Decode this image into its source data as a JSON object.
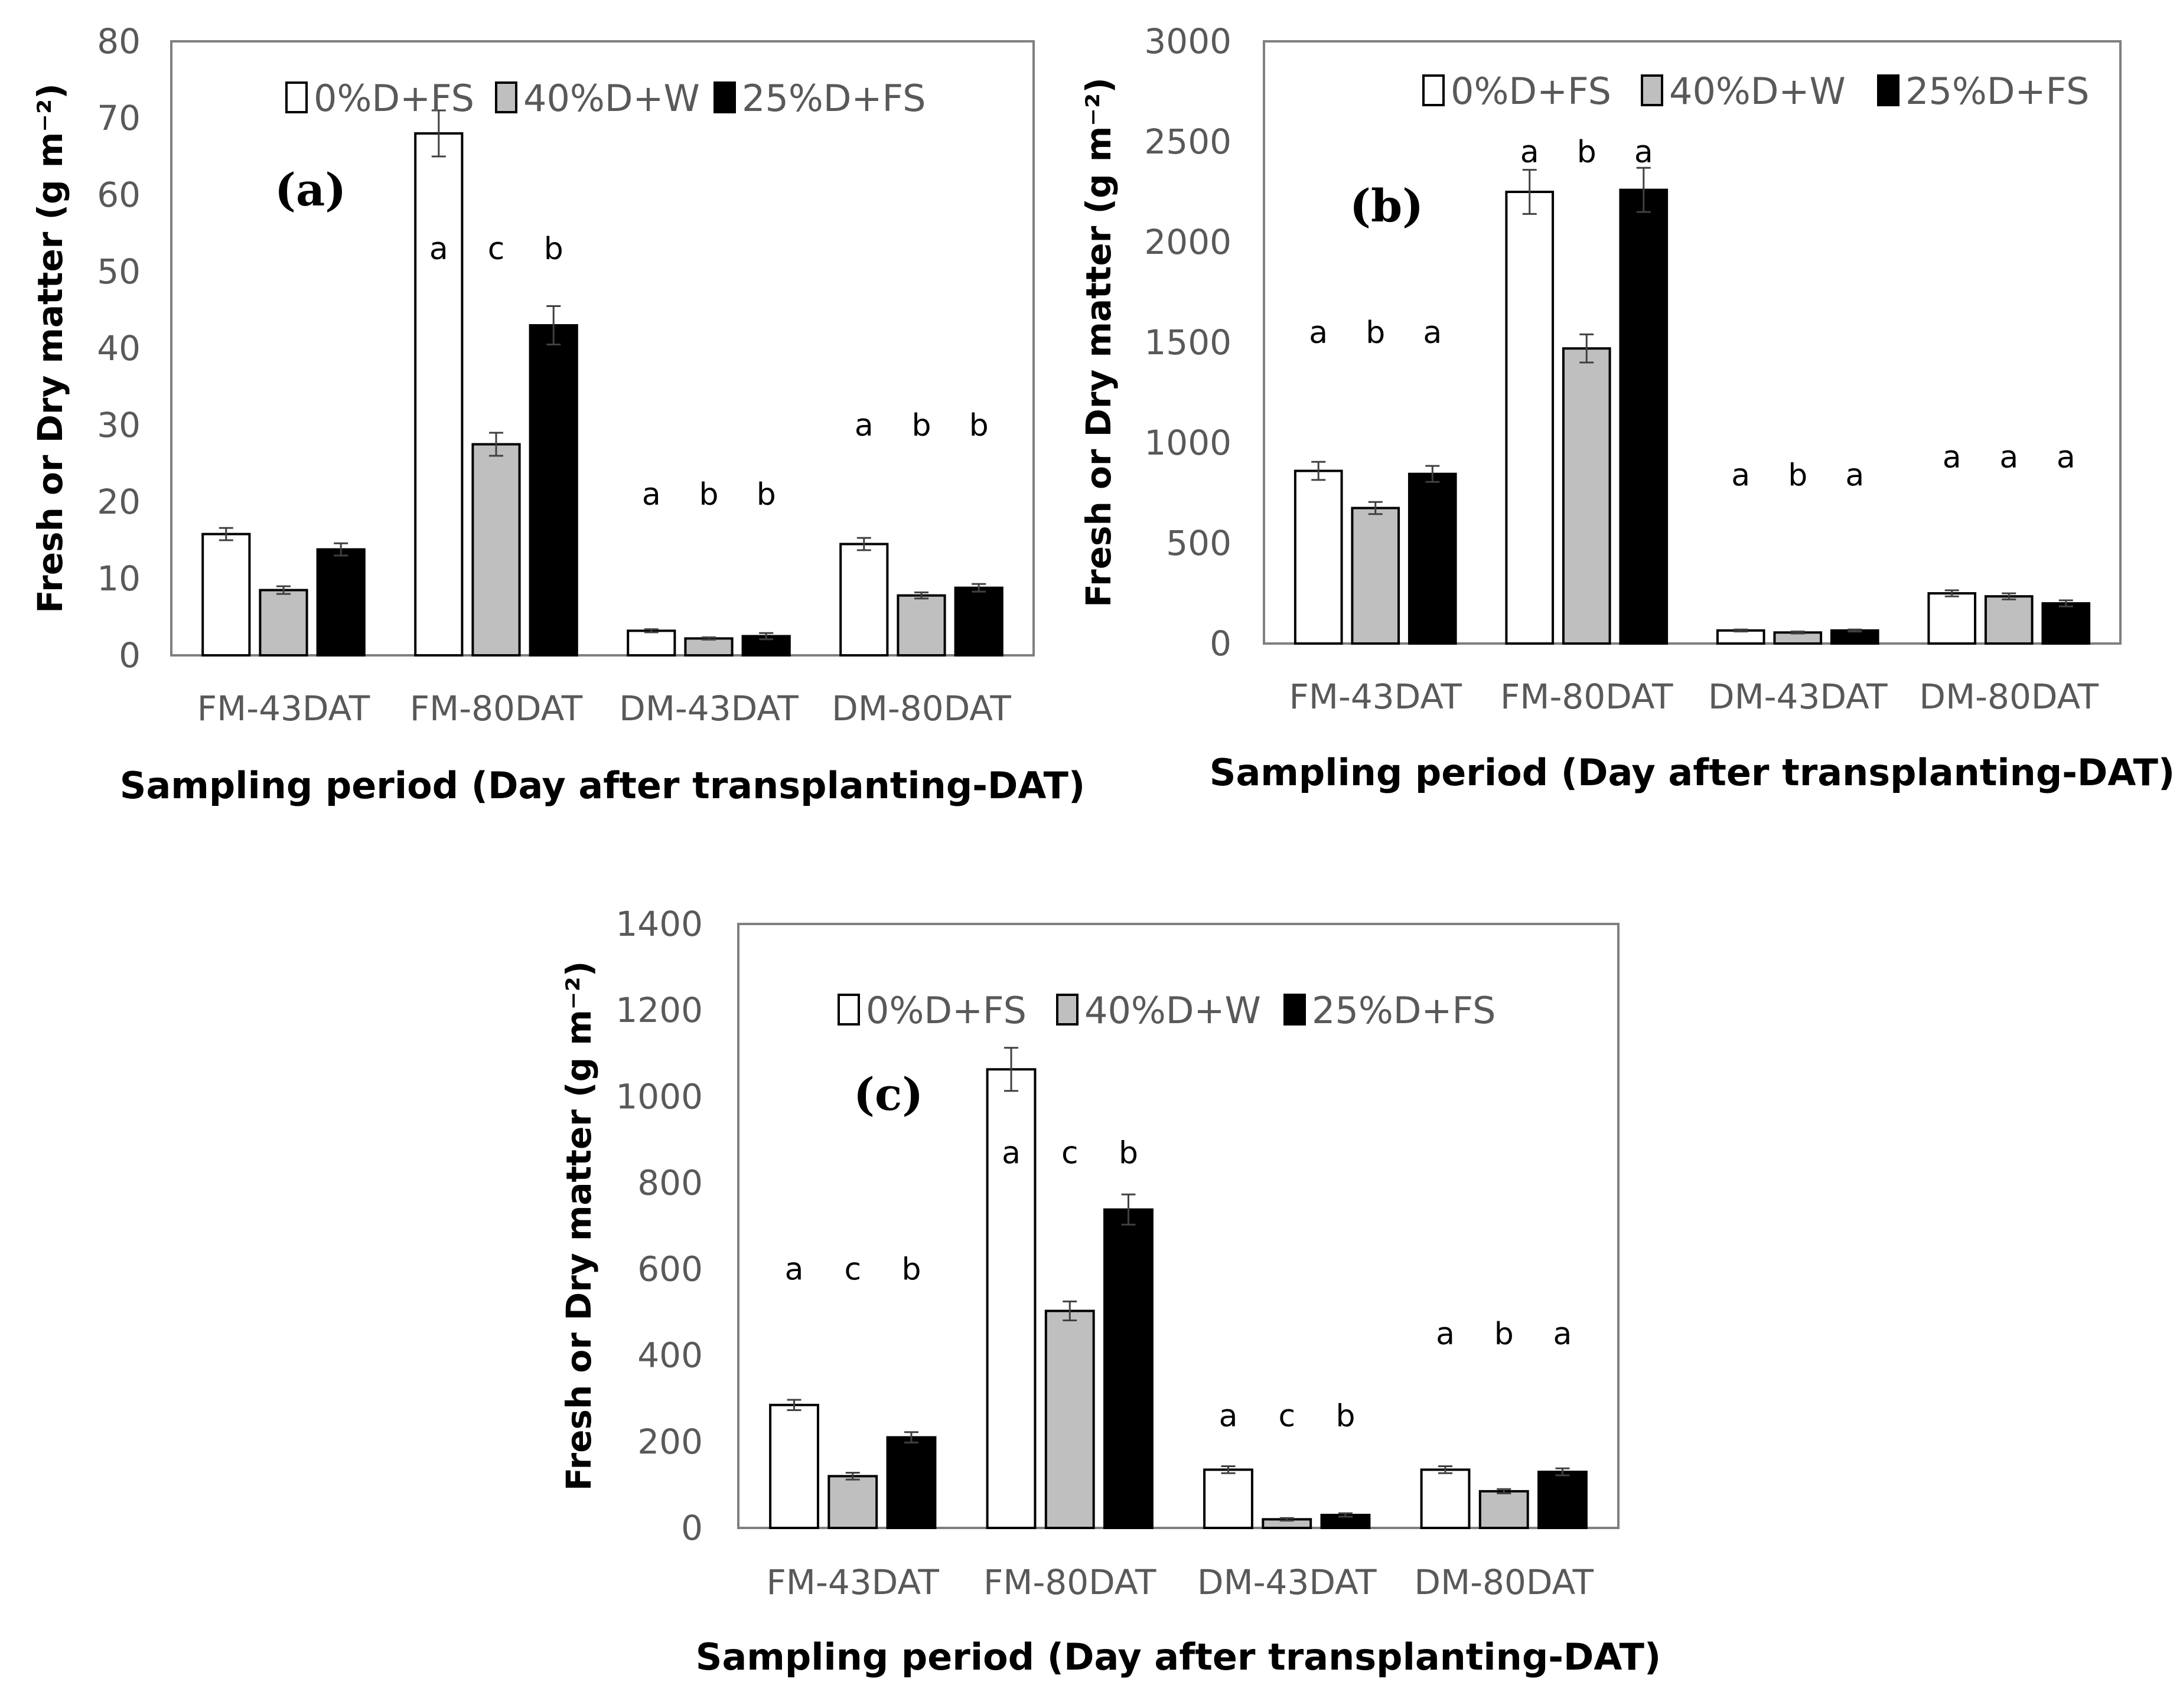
{
  "colors": {
    "0%D+FS": "#ffffff",
    "40%D+W": "#bfbfbf",
    "25%D+FS": "#000000"
  },
  "chart_data": [
    {
      "type": "bar",
      "panel_label": "(a)",
      "categories": [
        "FM-43DAT",
        "FM-80DAT",
        "DM-43DAT",
        "DM-80DAT"
      ],
      "series": [
        {
          "name": "0%D+FS",
          "values": [
            15.8,
            68.0,
            3.2,
            14.5
          ],
          "errors": [
            0.8,
            3.0,
            0.2,
            0.8
          ]
        },
        {
          "name": "40%D+W",
          "values": [
            8.5,
            27.5,
            2.2,
            7.8
          ],
          "errors": [
            0.5,
            1.5,
            0.15,
            0.4
          ]
        },
        {
          "name": "25%D+FS",
          "values": [
            13.8,
            43.0,
            2.5,
            8.8
          ],
          "errors": [
            0.8,
            2.5,
            0.4,
            0.5
          ]
        }
      ],
      "significance": [
        [
          "",
          "",
          ""
        ],
        [
          "a",
          "c",
          "b"
        ],
        [
          "a",
          "b",
          "b"
        ],
        [
          "a",
          "b",
          "b"
        ]
      ],
      "significance_y": [
        null,
        53,
        21,
        30
      ],
      "ylim": [
        0,
        80
      ],
      "yticks": [
        "0",
        "10",
        "20",
        "30",
        "40",
        "50",
        "60",
        "70",
        "80"
      ],
      "ylabel": "Fresh or Dry matter (g m⁻²)",
      "xlabel": "Sampling period (Day after transplanting-DAT)",
      "legend": [
        "0%D+FS",
        "40%D+W",
        "25%D+FS"
      ],
      "legend_position": "top-center"
    },
    {
      "type": "bar",
      "panel_label": "(b)",
      "categories": [
        "FM-43DAT",
        "FM-80DAT",
        "DM-43DAT",
        "DM-80DAT"
      ],
      "series": [
        {
          "name": "0%D+FS",
          "values": [
            860,
            2250,
            65,
            250
          ],
          "errors": [
            45,
            110,
            5,
            15
          ]
        },
        {
          "name": "40%D+W",
          "values": [
            675,
            1470,
            55,
            235
          ],
          "errors": [
            30,
            70,
            5,
            15
          ]
        },
        {
          "name": "25%D+FS",
          "values": [
            845,
            2260,
            65,
            200
          ],
          "errors": [
            40,
            110,
            5,
            15
          ]
        }
      ],
      "significance": [
        [
          "a",
          "b",
          "a"
        ],
        [
          "a",
          "b",
          "a"
        ],
        [
          "a",
          "b",
          "a"
        ],
        [
          "a",
          "a",
          "a"
        ]
      ],
      "significance_y": [
        1550,
        2450,
        840,
        930
      ],
      "ylim": [
        0,
        3000
      ],
      "yticks": [
        "0",
        "500",
        "1000",
        "1500",
        "2000",
        "2500",
        "3000"
      ],
      "ylabel": "Fresh or Dry matter (g m⁻²)",
      "xlabel": "Sampling period (Day after transplanting-DAT)",
      "legend": [
        "0%D+FS",
        "40%D+W",
        "25%D+FS"
      ],
      "legend_position": "top-center"
    },
    {
      "type": "bar",
      "panel_label": "(c)",
      "categories": [
        "FM-43DAT",
        "FM-80DAT",
        "DM-43DAT",
        "DM-80DAT"
      ],
      "series": [
        {
          "name": "0%D+FS",
          "values": [
            285,
            1063,
            135,
            135
          ],
          "errors": [
            12,
            50,
            8,
            8
          ]
        },
        {
          "name": "40%D+W",
          "values": [
            120,
            503,
            20,
            85
          ],
          "errors": [
            8,
            22,
            3,
            5
          ]
        },
        {
          "name": "25%D+FS",
          "values": [
            210,
            738,
            30,
            130
          ],
          "errors": [
            12,
            35,
            4,
            8
          ]
        }
      ],
      "significance": [
        [
          "a",
          "c",
          "b"
        ],
        [
          "a",
          "c",
          "b"
        ],
        [
          "a",
          "c",
          "b"
        ],
        [
          "a",
          "b",
          "a"
        ]
      ],
      "significance_y": [
        600,
        870,
        260,
        450
      ],
      "ylim": [
        0,
        1400
      ],
      "yticks": [
        "0",
        "200",
        "400",
        "600",
        "800",
        "1000",
        "1200",
        "1400"
      ],
      "ylabel": "Fresh or Dry matter (g m⁻²)",
      "xlabel": "Sampling period (Day after transplanting-DAT)",
      "legend": [
        "0%D+FS",
        "40%D+W",
        "25%D+FS"
      ],
      "legend_position": "top-center"
    }
  ]
}
